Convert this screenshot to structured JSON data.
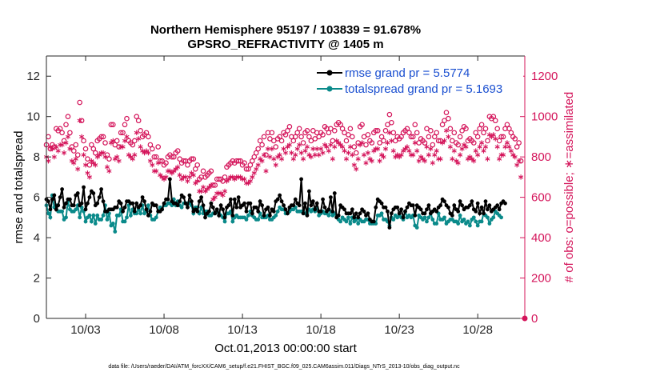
{
  "chart_data": {
    "type": "line",
    "title": "Northern Hemisphere 95197 / 103839 = 91.678%",
    "subtitle": "GPSRO_REFRACTIVITY @ 1405 m",
    "xlabel": "Oct.01,2013 00:00:00 start",
    "ylabel_left": "rmse and totalspread",
    "ylabel_right": "# of obs: o=possible; ∗=assimilated",
    "footer": "data file: /Users/raeder/DAI/ATM_forcXX/CAM6_setup/f.e21.FHIST_BGC.f09_025.CAM6assim.011/Diags_NTrS_2013-10/obs_diag_output.nc",
    "x_range_days": [
      0.5,
      31.0
    ],
    "x_ticks": [
      {
        "day": 3,
        "label": "10/03"
      },
      {
        "day": 8,
        "label": "10/08"
      },
      {
        "day": 13,
        "label": "10/13"
      },
      {
        "day": 18,
        "label": "10/18"
      },
      {
        "day": 23,
        "label": "10/23"
      },
      {
        "day": 28,
        "label": "10/28"
      }
    ],
    "ylim_left": [
      0,
      13
    ],
    "yticks_left": [
      0,
      2,
      4,
      6,
      8,
      10,
      12
    ],
    "ylim_right": [
      0,
      1300
    ],
    "yticks_right": [
      0,
      200,
      400,
      600,
      800,
      1000,
      1200
    ],
    "step_days": 0.125,
    "colors": {
      "rmse": "#000000",
      "spread": "#0a8a8a",
      "obs": "#d4145a",
      "legend_text": "#1a4fd0"
    },
    "legend": [
      {
        "name": "rmse",
        "label": "rmse grand pr = 5.5774"
      },
      {
        "name": "spread",
        "label": "totalspread grand pr = 5.1693"
      }
    ],
    "series": [
      {
        "name": "rmse",
        "values": [
          5.9,
          5.8,
          5.4,
          5.9,
          6.1,
          5.4,
          5.6,
          6.0,
          6.4,
          5.5,
          5.7,
          5.9,
          5.9,
          5.6,
          5.6,
          6.1,
          6.2,
          5.6,
          5.7,
          6.5,
          5.4,
          5.7,
          6.0,
          6.3,
          6.2,
          5.6,
          5.7,
          6.0,
          6.4,
          5.8,
          5.3,
          5.3,
          5.4,
          5.4,
          5.4,
          5.5,
          5.5,
          5.8,
          5.7,
          5.3,
          5.5,
          5.8,
          5.8,
          5.7,
          5.7,
          5.3,
          5.7,
          5.5,
          5.6,
          6.0,
          5.8,
          5.4,
          5.1,
          5.3,
          5.7,
          5.6,
          5.6,
          5.3,
          5.3,
          5.4,
          5.7,
          5.9,
          5.9,
          6.9,
          5.8,
          5.7,
          5.7,
          5.6,
          5.8,
          6.1,
          6.0,
          5.7,
          5.5,
          6.1,
          5.8,
          5.3,
          5.4,
          5.3,
          5.8,
          6.0,
          5.6,
          5.0,
          5.2,
          5.3,
          5.7,
          5.5,
          5.2,
          5.4,
          5.1,
          5.6,
          5.4,
          5.0,
          5.5,
          5.6,
          5.9,
          5.1,
          5.9,
          5.5,
          6.0,
          5.5,
          5.6,
          5.7,
          5.3,
          5.7,
          5.7,
          5.2,
          5.5,
          5.5,
          5.3,
          5.8,
          5.6,
          5.1,
          5.4,
          5.5,
          5.1,
          5.4,
          5.3,
          5.8,
          5.9,
          6.1,
          5.8,
          5.6,
          5.4,
          5.2,
          5.5,
          5.6,
          5.6,
          5.9,
          5.7,
          5.6,
          6.9,
          5.2,
          5.7,
          5.1,
          6.3,
          5.6,
          5.8,
          5.4,
          5.7,
          5.3,
          5.3,
          5.9,
          5.5,
          5.3,
          5.4,
          6.0,
          5.3,
          6.2,
          5.0,
          5.1,
          5.6,
          5.5,
          5.4,
          5.2,
          5.2,
          5.2,
          5.4,
          5.0,
          5.2,
          5.0,
          5.2,
          5.4,
          5.3,
          5.1,
          5.2,
          4.9,
          4.8,
          4.8,
          5.5,
          5.9,
          5.8,
          5.7,
          5.5,
          5.5,
          5.3,
          4.5,
          5.2,
          5.4,
          5.5,
          5.5,
          5.2,
          5.4,
          5.0,
          5.3,
          5.5,
          5.7,
          5.6,
          5.6,
          5.1,
          5.6,
          5.5,
          5.4,
          5.2,
          5.2,
          5.4,
          5.6,
          5.2,
          5.3,
          5.4,
          5.3,
          5.5,
          5.6,
          5.9,
          5.8,
          5.6,
          5.5,
          5.2,
          5.1,
          5.6,
          5.4,
          5.3,
          5.8,
          5.6,
          5.4,
          5.5,
          5.5,
          5.6,
          5.8,
          5.4,
          5.3,
          5.7,
          5.2,
          5.5,
          5.2,
          5.8,
          5.4,
          5.6,
          5.3,
          5.4,
          5.5,
          5.6,
          5.4,
          5.7,
          5.8,
          5.7
        ]
      },
      {
        "name": "spread",
        "values": [
          5.6,
          5.2,
          5.0,
          6.1,
          5.5,
          5.6,
          5.3,
          5.3,
          5.3,
          4.9,
          5.0,
          5.8,
          5.4,
          5.3,
          5.3,
          5.4,
          5.6,
          5.0,
          5.5,
          5.3,
          4.8,
          5.0,
          5.1,
          4.8,
          5.1,
          4.7,
          5.1,
          4.9,
          4.9,
          5.1,
          5.6,
          4.9,
          5.2,
          4.6,
          4.7,
          4.3,
          5.1,
          5.1,
          5.4,
          4.8,
          4.8,
          5.0,
          5.6,
          5.1,
          5.4,
          5.2,
          5.2,
          5.4,
          5.2,
          5.6,
          5.2,
          5.3,
          5.6,
          5.1,
          4.9,
          4.9,
          5.0,
          5.3,
          5.5,
          5.4,
          5.6,
          5.6,
          5.7,
          5.7,
          5.6,
          5.9,
          5.6,
          5.8,
          5.6,
          5.5,
          5.7,
          5.7,
          5.7,
          5.7,
          5.6,
          5.2,
          5.5,
          5.5,
          5.2,
          5.5,
          5.2,
          5.3,
          5.3,
          5.1,
          5.1,
          5.2,
          5.2,
          5.3,
          5.2,
          5.1,
          5.0,
          4.8,
          5.2,
          5.2,
          5.3,
          4.8,
          5.0,
          5.1,
          5.0,
          5.0,
          5.0,
          5.0,
          4.9,
          5.1,
          5.3,
          5.1,
          5.0,
          4.9,
          4.9,
          5.2,
          5.0,
          5.0,
          5.0,
          5.1,
          4.9,
          4.9,
          5.0,
          5.1,
          5.3,
          5.5,
          5.4,
          5.4,
          5.2,
          5.2,
          5.3,
          5.4,
          5.4,
          5.5,
          5.3,
          5.3,
          5.3,
          5.3,
          5.2,
          5.2,
          5.4,
          5.3,
          5.4,
          5.3,
          5.5,
          5.1,
          5.2,
          5.3,
          5.2,
          5.2,
          5.1,
          5.3,
          5.1,
          5.2,
          5.0,
          4.9,
          4.8,
          5.0,
          4.9,
          4.8,
          5.0,
          4.7,
          5.0,
          4.8,
          4.9,
          4.7,
          4.9,
          4.8,
          4.8,
          4.9,
          4.9,
          4.7,
          4.7,
          4.7,
          4.7,
          5.1,
          5.1,
          5.2,
          4.9,
          4.9,
          4.8,
          4.6,
          5.0,
          4.9,
          5.1,
          5.0,
          5.1,
          5.0,
          4.9,
          5.3,
          5.0,
          5.1,
          5.0,
          5.1,
          4.6,
          4.5,
          5.1,
          5.0,
          4.9,
          5.0,
          4.8,
          5.0,
          5.2,
          4.9,
          4.7,
          4.7,
          5.2,
          4.9,
          4.9,
          5.0,
          4.7,
          4.8,
          4.9,
          4.9,
          4.8,
          4.8,
          4.7,
          5.1,
          4.8,
          4.9,
          4.7,
          4.8,
          4.6,
          4.9,
          5.0,
          4.8,
          4.6,
          4.8,
          4.8,
          5.2,
          5.1,
          5.0,
          4.7,
          4.9,
          5.0,
          5.3,
          5.2,
          5.1,
          5.0
        ]
      },
      {
        "name": "possible",
        "values": [
          860,
          900,
          840,
          860,
          850,
          940,
          930,
          940,
          920,
          880,
          960,
          1000,
          920,
          850,
          830,
          860,
          810,
          1070,
          980,
          880,
          840,
          790,
          760,
          860,
          840,
          820,
          880,
          890,
          900,
          900,
          870,
          810,
          790,
          960,
          960,
          860,
          880,
          850,
          920,
          920,
          960,
          990,
          880,
          870,
          860,
          880,
          1000,
          980,
          930,
          900,
          910,
          920,
          900,
          860,
          840,
          800,
          800,
          850,
          780,
          780,
          760,
          770,
          800,
          810,
          800,
          800,
          820,
          830,
          790,
          770,
          780,
          780,
          760,
          780,
          790,
          790,
          740,
          760,
          690,
          700,
          730,
          700,
          710,
          720,
          730,
          660,
          660,
          690,
          690,
          690,
          680,
          700,
          750,
          760,
          770,
          780,
          770,
          780,
          780,
          780,
          760,
          770,
          740,
          740,
          760,
          780,
          800,
          820,
          840,
          880,
          860,
          900,
          810,
          920,
          890,
          920,
          880,
          850,
          890,
          900,
          880,
          920,
          910,
          930,
          950,
          900,
          880,
          900,
          920,
          940,
          900,
          870,
          920,
          930,
          900,
          880,
          930,
          890,
          920,
          900,
          920,
          910,
          950,
          940,
          920,
          940,
          880,
          930,
          960,
          970,
          960,
          940,
          920,
          880,
          910,
          940,
          900,
          850,
          820,
          870,
          950,
          960,
          900,
          860,
          910,
          880,
          870,
          920,
          930,
          930,
          870,
          900,
          880,
          930,
          960,
          1010,
          970,
          920,
          880,
          900,
          890,
          900,
          920,
          930,
          940,
          920,
          900,
          900,
          960,
          920,
          870,
          890,
          880,
          870,
          940,
          900,
          930,
          860,
          900,
          920,
          880,
          880,
          960,
          980,
          1020,
          990,
          940,
          880,
          920,
          870,
          860,
          900,
          930,
          950,
          940,
          880,
          890,
          880,
          870,
          920,
          900,
          940,
          960,
          920,
          940,
          880,
          1000,
          990,
          1000,
          980,
          940,
          880,
          900,
          900,
          940,
          960,
          940,
          920,
          900,
          890,
          850,
          870,
          780
        ]
      },
      {
        "name": "assimilated",
        "values": [
          800,
          780,
          850,
          840,
          800,
          850,
          830,
          860,
          860,
          820,
          870,
          900,
          840,
          780,
          770,
          790,
          740,
          980,
          900,
          810,
          760,
          720,
          700,
          780,
          770,
          760,
          800,
          810,
          820,
          820,
          800,
          750,
          730,
          870,
          880,
          790,
          800,
          780,
          850,
          850,
          880,
          900,
          810,
          800,
          790,
          810,
          920,
          890,
          850,
          830,
          820,
          830,
          820,
          780,
          760,
          730,
          730,
          770,
          710,
          700,
          690,
          700,
          730,
          730,
          720,
          730,
          740,
          750,
          710,
          690,
          700,
          700,
          680,
          700,
          720,
          710,
          670,
          680,
          630,
          630,
          650,
          630,
          640,
          650,
          660,
          590,
          600,
          620,
          620,
          620,
          610,
          630,
          680,
          690,
          700,
          700,
          690,
          700,
          700,
          700,
          690,
          690,
          670,
          670,
          680,
          700,
          720,
          740,
          760,
          790,
          780,
          810,
          730,
          840,
          800,
          840,
          790,
          760,
          800,
          810,
          790,
          840,
          820,
          850,
          860,
          820,
          790,
          810,
          840,
          860,
          820,
          790,
          830,
          850,
          810,
          800,
          840,
          810,
          840,
          810,
          840,
          820,
          860,
          850,
          830,
          860,
          790,
          850,
          880,
          870,
          860,
          850,
          830,
          790,
          820,
          850,
          810,
          760,
          740,
          790,
          860,
          870,
          810,
          770,
          820,
          790,
          780,
          830,
          840,
          840,
          780,
          810,
          800,
          840,
          870,
          920,
          880,
          830,
          800,
          810,
          800,
          810,
          830,
          840,
          850,
          830,
          810,
          810,
          870,
          830,
          780,
          800,
          790,
          780,
          850,
          810,
          840,
          770,
          810,
          830,
          790,
          790,
          870,
          880,
          930,
          900,
          850,
          790,
          830,
          780,
          770,
          810,
          840,
          860,
          850,
          790,
          800,
          790,
          780,
          830,
          810,
          850,
          870,
          830,
          850,
          790,
          910,
          900,
          910,
          890,
          850,
          790,
          810,
          810,
          850,
          870,
          850,
          830,
          810,
          800,
          760,
          780,
          700
        ]
      }
    ]
  }
}
